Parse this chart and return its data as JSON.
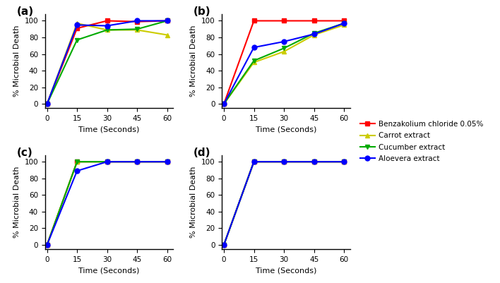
{
  "x": [
    0,
    15,
    30,
    45,
    60
  ],
  "panels": {
    "a": {
      "label": "(a)",
      "series": {
        "benzakolium": [
          0,
          91,
          100,
          99,
          100
        ],
        "carrot": [
          0,
          97,
          89,
          89,
          83
        ],
        "cucumber": [
          0,
          77,
          89,
          90,
          100
        ],
        "aloevera": [
          0,
          95,
          94,
          100,
          100
        ]
      }
    },
    "b": {
      "label": "(b)",
      "series": {
        "benzakolium": [
          0,
          100,
          100,
          100,
          100
        ],
        "carrot": [
          0,
          50,
          63,
          83,
          95
        ],
        "cucumber": [
          0,
          52,
          67,
          85,
          97
        ],
        "aloevera": [
          0,
          68,
          75,
          84,
          97
        ]
      }
    },
    "c": {
      "label": "(c)",
      "series": {
        "benzakolium": [
          0,
          100,
          100,
          100,
          100
        ],
        "carrot": [
          0,
          100,
          100,
          100,
          100
        ],
        "cucumber": [
          0,
          100,
          100,
          100,
          100
        ],
        "aloevera": [
          0,
          89,
          100,
          100,
          100
        ]
      }
    },
    "d": {
      "label": "(d)",
      "series": {
        "benzakolium": [
          0,
          100,
          100,
          100,
          100
        ],
        "carrot": [
          0,
          100,
          100,
          100,
          100
        ],
        "cucumber": [
          0,
          100,
          100,
          100,
          100
        ],
        "aloevera": [
          0,
          100,
          100,
          100,
          100
        ]
      }
    }
  },
  "colors": {
    "benzakolium": "#FF0000",
    "carrot": "#CCCC00",
    "cucumber": "#00AA00",
    "aloevera": "#0000FF"
  },
  "markers": {
    "benzakolium": "s",
    "carrot": "^",
    "cucumber": "v",
    "aloevera": "o"
  },
  "legend_labels": {
    "benzakolium": "Benzakolium chloride 0.05%",
    "carrot": "Carrot extract",
    "cucumber": "Cucumber extract",
    "aloevera": "Aloevera extract"
  },
  "xlabel": "Time (Seconds)",
  "ylabel": "% Microbial Death",
  "xticks": [
    0,
    15,
    30,
    45,
    60
  ],
  "yticks": [
    0,
    20,
    40,
    60,
    80,
    100
  ],
  "ylim": [
    -5,
    108
  ],
  "xlim": [
    -1,
    63
  ]
}
